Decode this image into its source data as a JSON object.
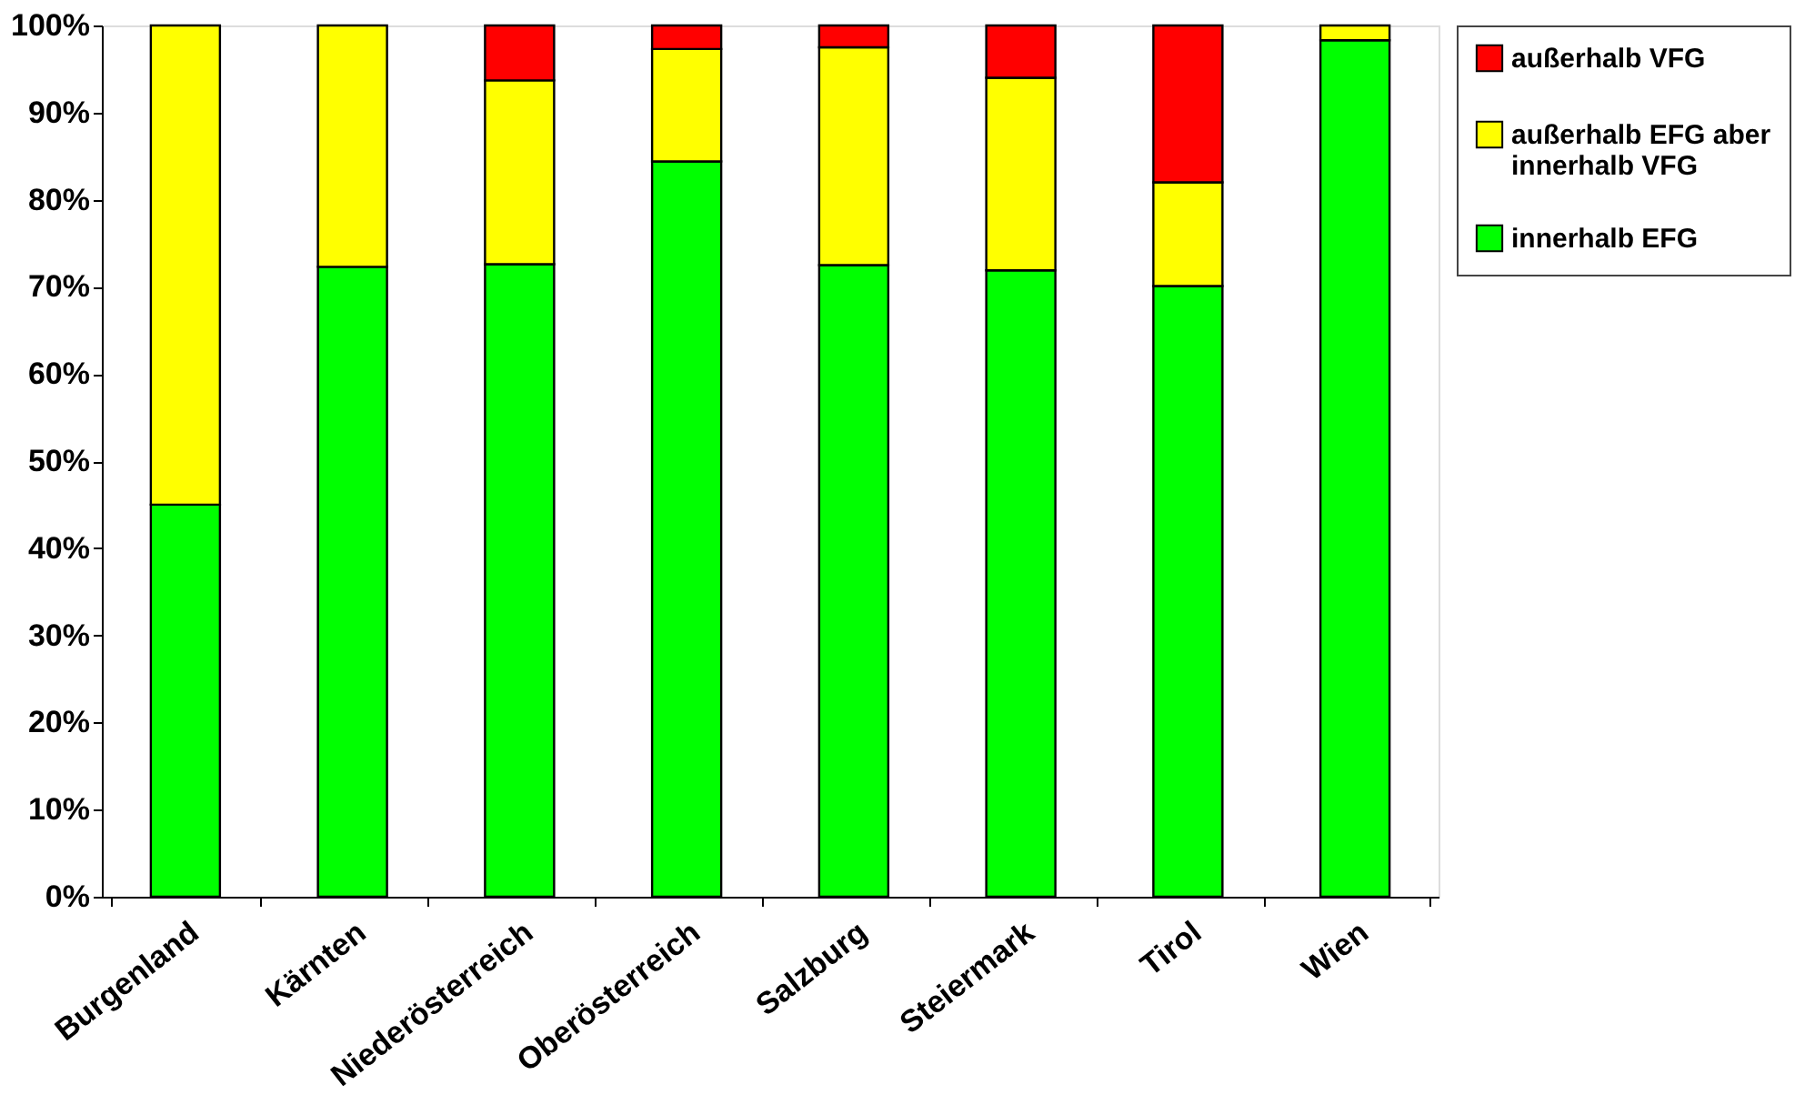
{
  "chart_data": {
    "type": "bar",
    "stacked": true,
    "categories": [
      "Burgenland",
      "Kärnten",
      "Niederösterreich",
      "Oberösterreich",
      "Salzburg",
      "Steiermark",
      "Tirol",
      "Wien"
    ],
    "series": [
      {
        "name": "innerhalb EFG",
        "color": "#00ff00",
        "values": [
          45.0,
          72.3,
          72.6,
          84.4,
          72.5,
          71.9,
          70.1,
          98.3
        ]
      },
      {
        "name": "außerhalb EFG aber innerhalb VFG",
        "color": "#ffff00",
        "values": [
          55.0,
          27.7,
          21.1,
          12.9,
          25.0,
          22.1,
          11.9,
          1.7
        ]
      },
      {
        "name": "außerhalb VFG",
        "color": "#ff0000",
        "values": [
          null,
          null,
          6.3,
          2.7,
          2.5,
          6.0,
          18.0,
          null
        ]
      }
    ],
    "ylim": [
      0,
      100
    ],
    "yticks": [
      {
        "value": 0,
        "label": "0%"
      },
      {
        "value": 10,
        "label": "10%"
      },
      {
        "value": 20,
        "label": "20%"
      },
      {
        "value": 30,
        "label": "30%"
      },
      {
        "value": 40,
        "label": "40%"
      },
      {
        "value": 50,
        "label": "50%"
      },
      {
        "value": 60,
        "label": "60%"
      },
      {
        "value": 70,
        "label": "70%"
      },
      {
        "value": 80,
        "label": "80%"
      },
      {
        "value": 90,
        "label": "90%"
      },
      {
        "value": 100,
        "label": "100%"
      }
    ],
    "grid": false,
    "legend": "right"
  }
}
